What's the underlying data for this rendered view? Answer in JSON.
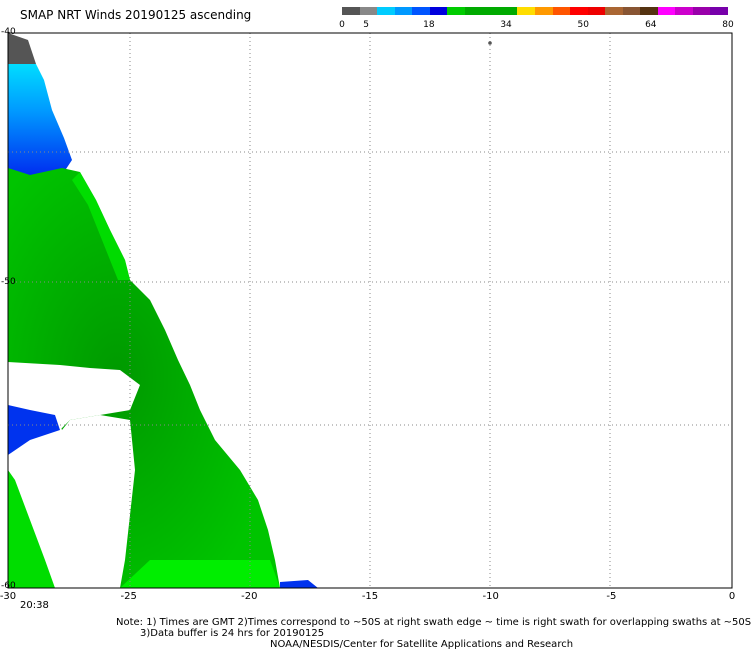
{
  "title": "SMAP NRT Winds 20190125 ascending",
  "colorbar": {
    "labels": [
      "0",
      "5",
      "18",
      "34",
      "50",
      "64",
      "80"
    ],
    "label_values": [
      0,
      5,
      18,
      34,
      50,
      64,
      80
    ],
    "colors": [
      "#555555",
      "#888888",
      "#00ccff",
      "#0099ff",
      "#0055ff",
      "#0000dd",
      "#00cc00",
      "#00aa00",
      "#00aa00",
      "#00aa00",
      "#ffdd00",
      "#ff9900",
      "#ff5500",
      "#ff0000",
      "#ee0000",
      "#aa6633",
      "#885533",
      "#553311",
      "#ff00ff",
      "#cc00cc",
      "#9900aa",
      "#7700aa"
    ]
  },
  "axes": {
    "x_ticks": [
      "-30",
      "-25",
      "-20",
      "-15",
      "-10",
      "-5",
      "0"
    ],
    "x_values": [
      -30,
      -25,
      -20,
      -15,
      -10,
      -5,
      0
    ],
    "y_top": "-40",
    "y_bottom": "-60",
    "y_mid": "-50"
  },
  "time_label": "20:38",
  "notes": {
    "line1": "Note: 1) Times are GMT 2)Times correspond to ~50S at right swath edge ~ time is right swath for overlapping swaths at ~50S",
    "line2": "3)Data buffer is 24 hrs for 20190125",
    "line3": "NOAA/NESDIS/Center for Satellite Applications and Research"
  },
  "colors": {
    "green_light": "#00ee00",
    "green_dark": "#00b800",
    "blue": "#0033ee",
    "blue_light": "#00aaff",
    "cyan": "#00ddff",
    "gray": "#555555"
  }
}
